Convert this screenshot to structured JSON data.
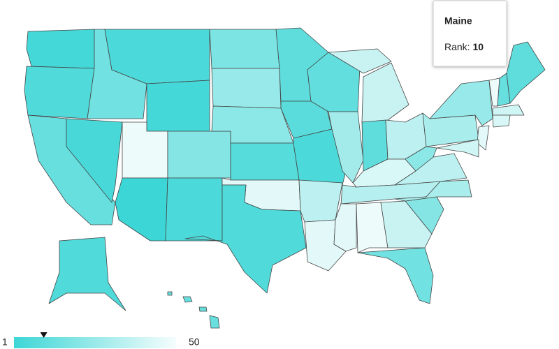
{
  "map": {
    "regions": [
      3,
      6,
      12,
      4,
      15,
      5,
      3,
      48,
      1,
      20,
      5,
      18,
      25,
      22,
      8,
      45,
      6,
      10,
      9,
      5,
      35,
      45,
      11,
      28,
      38,
      10,
      35,
      42,
      33,
      45,
      48,
      38,
      15,
      20,
      30,
      35,
      22,
      30,
      25,
      45,
      40,
      48,
      12,
      40,
      42,
      10,
      6,
      12
    ],
    "legend": {
      "min": 1,
      "max": 50,
      "colors": [
        "#3dd6d6",
        "#f6fdfd"
      ]
    },
    "tooltip": {
      "title": "Maine",
      "label": "Rank:",
      "value": 10
    }
  }
}
